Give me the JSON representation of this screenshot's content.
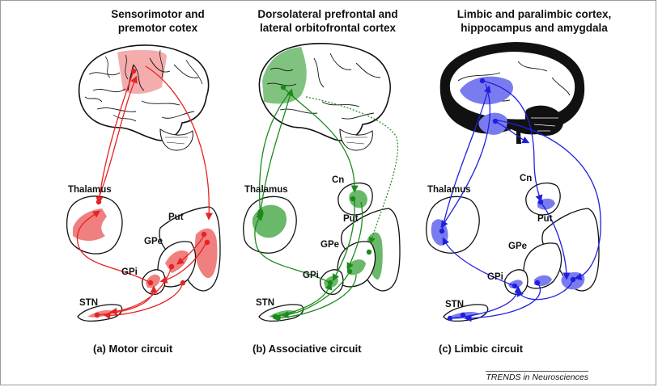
{
  "colors": {
    "motor": "#e62222",
    "motor_fill": "#f07f7f",
    "associative": "#1b8a1b",
    "associative_fill": "#5fb35f",
    "limbic": "#1f1fe0",
    "limbic_fill": "#7b7bf0"
  },
  "panels": [
    {
      "title_line1": "Sensorimotor and",
      "title_line2": "premotor cotex",
      "caption": "(a) Motor circuit",
      "labels": {
        "thalamus": "Thalamus",
        "put": "Put",
        "gpe": "GPe",
        "gpi": "GPi",
        "stn": "STN"
      }
    },
    {
      "title_line1": "Dorsolateral prefrontal and",
      "title_line2": "lateral orbitofrontal cortex",
      "caption": "(b) Associative circuit",
      "labels": {
        "thalamus": "Thalamus",
        "cn": "Cn",
        "put": "Put",
        "gpe": "GPe",
        "gpi": "GPi",
        "stn": "STN"
      }
    },
    {
      "title_line1": "Limbic and paralimbic cortex,",
      "title_line2": "hippocampus and amygdala",
      "caption": "(c) Limbic circuit",
      "labels": {
        "thalamus": "Thalamus",
        "cn": "Cn",
        "put": "Put",
        "gpe": "GPe",
        "gpi": "GPi",
        "stn": "STN"
      }
    }
  ],
  "credit": "TRENDS in Neurosciences"
}
